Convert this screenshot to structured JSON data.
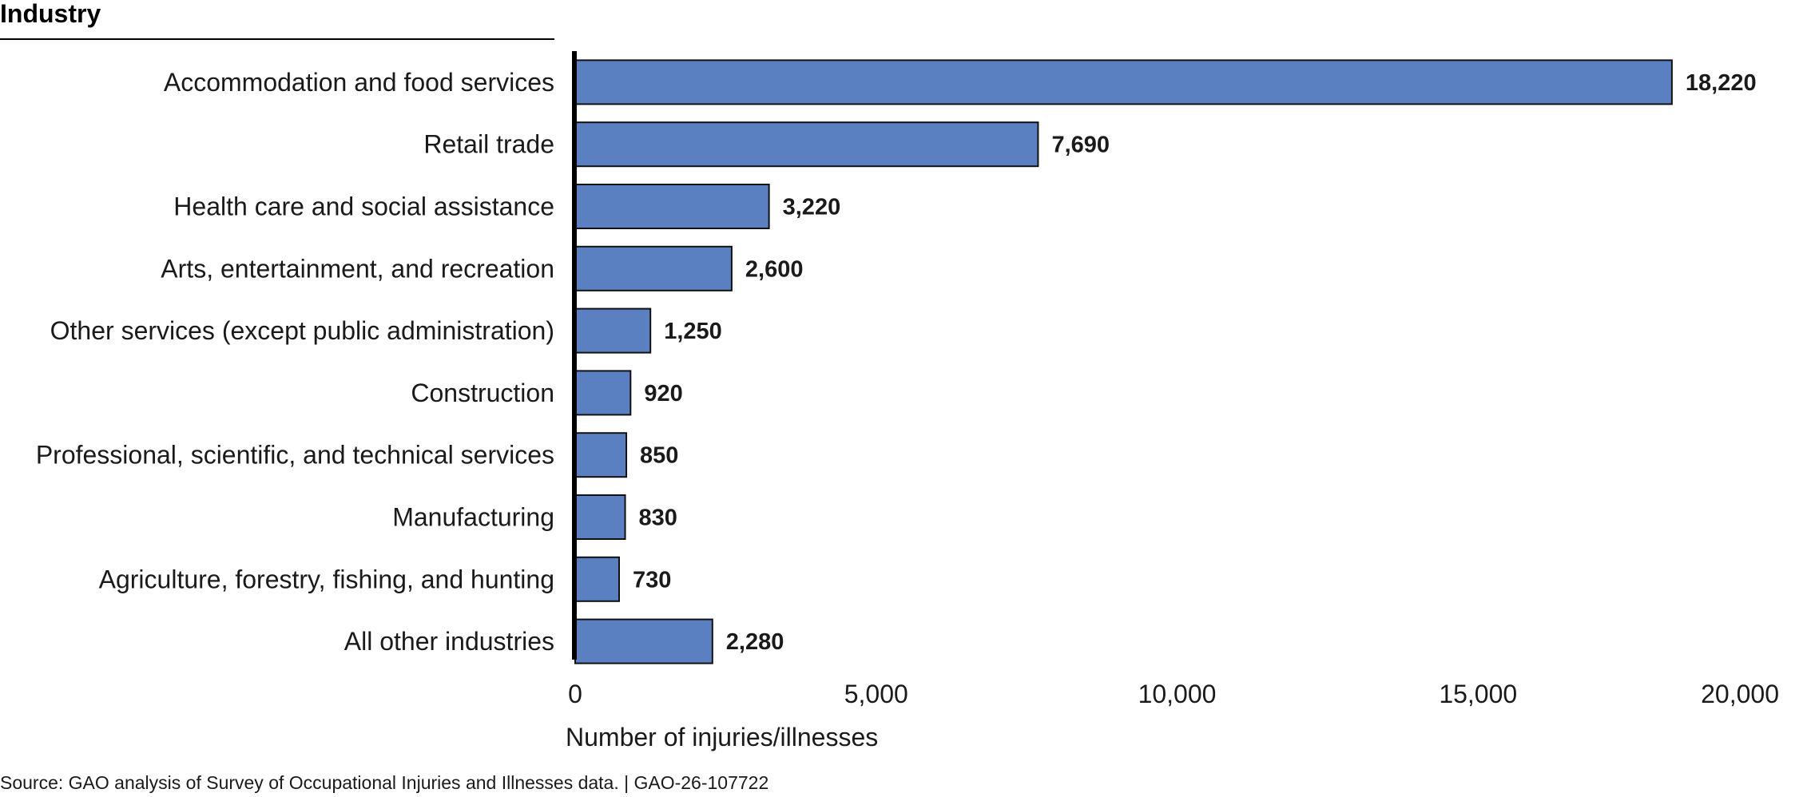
{
  "chart_data": {
    "type": "bar",
    "orientation": "horizontal",
    "header_label": "Industry",
    "categories": [
      "Accommodation and food services",
      "Retail trade",
      "Health care and social assistance",
      "Arts, entertainment, and recreation",
      "Other services (except public administration)",
      "Construction",
      "Professional, scientific, and technical services",
      "Manufacturing",
      "Agriculture, forestry, fishing, and hunting",
      "All other industries"
    ],
    "values": [
      18220,
      7690,
      3220,
      2600,
      1250,
      920,
      850,
      830,
      730,
      2280
    ],
    "value_labels": [
      "18,220",
      "7,690",
      "3,220",
      "2,600",
      "1,250",
      "920",
      "850",
      "830",
      "730",
      "2,280"
    ],
    "xlabel": "Number of injuries/illnesses",
    "ylabel": "",
    "xlim": [
      0,
      20000
    ],
    "x_ticks": [
      0,
      5000,
      10000,
      15000,
      20000
    ],
    "x_tick_labels": [
      "0",
      "5,000",
      "10,000",
      "15,000",
      "20,000"
    ],
    "grid": false,
    "bar_color": "#5a80c2",
    "bar_border_color": "#111111"
  },
  "source": "Source: GAO analysis of Survey of Occupational Injuries and Illnesses data.  |  GAO-26-107722"
}
